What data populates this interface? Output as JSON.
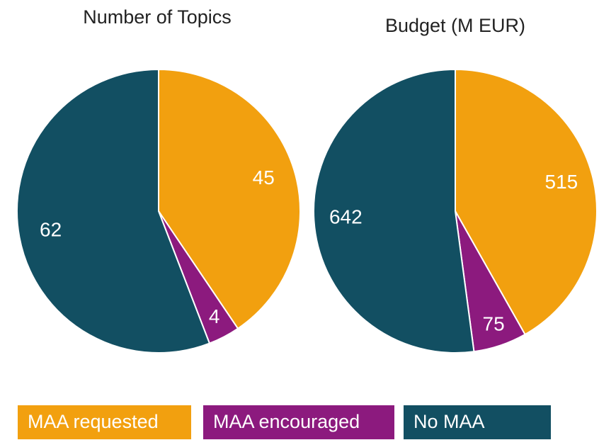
{
  "chart_data": [
    {
      "type": "pie",
      "title": "Number of Topics",
      "values": [
        45,
        4,
        62
      ]
    },
    {
      "type": "pie",
      "title": "Budget (M EUR)",
      "values": [
        515,
        75,
        642
      ]
    }
  ],
  "legend": {
    "categories": [
      "MAA requested",
      "MAA encouraged",
      "No MAA"
    ],
    "colors": [
      "#f2a00f",
      "#8c1a7e",
      "#124f62"
    ]
  }
}
